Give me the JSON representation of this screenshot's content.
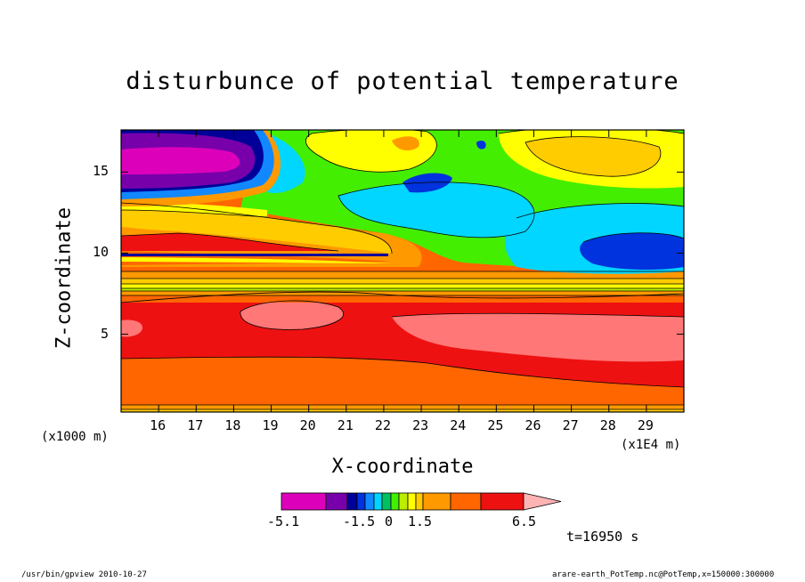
{
  "chart_data": {
    "type": "heatmap",
    "title": "disturbunce of potential temperature",
    "xlabel": "X-coordinate",
    "ylabel": "Z-coordinate",
    "x_unit_label": "(x1E4 m)",
    "y_unit_label": "(x1000 m)",
    "x_ticks": [
      "16",
      "17",
      "18",
      "19",
      "20",
      "21",
      "22",
      "23",
      "24",
      "25",
      "26",
      "27",
      "28",
      "29"
    ],
    "x_tick_values": [
      16,
      17,
      18,
      19,
      20,
      21,
      22,
      23,
      24,
      25,
      26,
      27,
      28,
      29
    ],
    "y_ticks": [
      "5",
      "10",
      "15"
    ],
    "y_tick_values": [
      5,
      10,
      15
    ],
    "xlim": [
      15,
      30
    ],
    "ylim": [
      0.2,
      17.6
    ],
    "colorbar": {
      "levels": [
        -5.1,
        -4.1,
        -3.1,
        -2.6,
        -2.1,
        -1.5,
        -1.0,
        -0.5,
        0,
        0.5,
        1.0,
        1.5,
        2.5,
        3.5,
        4.5,
        6.5
      ],
      "labels": [
        "-5.1",
        "-1.5",
        "0",
        "1.5",
        "6.5"
      ],
      "label_values": [
        -5.1,
        -1.5,
        0,
        1.5,
        6.5
      ],
      "colors": [
        "#dd00bb",
        "#7700aa",
        "#000099",
        "#0033dd",
        "#1188ff",
        "#00d6ff",
        "#00c060",
        "#44ee00",
        "#bbee00",
        "#ffff00",
        "#ffcc00",
        "#ff9900",
        "#ff6600",
        "#ee1111",
        "#ff7777",
        "#ffb3b3"
      ]
    },
    "time_label": "t=16950 s"
  },
  "footer": {
    "left": "/usr/bin/gpview   2010-10-27",
    "right": "arare-earth_PotTemp.nc@PotTemp,x=150000:300000"
  }
}
